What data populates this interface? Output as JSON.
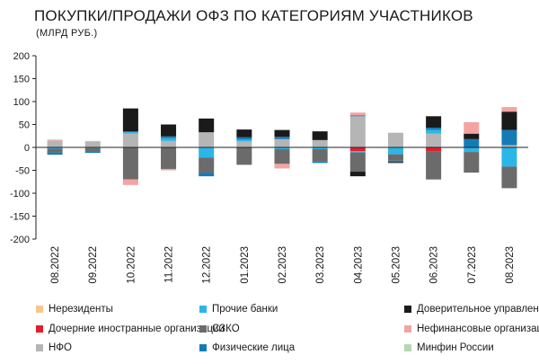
{
  "chart_data": {
    "type": "bar",
    "stacked": true,
    "title": "ПОКУПКИ/ПРОДАЖИ ОФЗ ПО КАТЕГОРИЯМ УЧАСТНИКОВ",
    "subtitle": "(МЛРД РУБ.)",
    "ylim": [
      -200,
      200
    ],
    "yticks": [
      -200,
      -150,
      -100,
      -50,
      0,
      50,
      100,
      150,
      200
    ],
    "grid": false,
    "legend_position": "bottom",
    "categories": [
      "08.2022",
      "09.2022",
      "10.2022",
      "11.2022",
      "12.2022",
      "01.2023",
      "02.2023",
      "03.2023",
      "04.2023",
      "05.2023",
      "06.2023",
      "07.2023",
      "08.2023"
    ],
    "series": [
      {
        "name": "Нерезиденты",
        "color": "#f7c88a",
        "values": [
          0,
          0,
          0,
          0,
          0,
          0,
          0,
          0,
          0,
          0,
          0,
          0,
          0
        ]
      },
      {
        "name": "Дочерние иностранные организации",
        "color": "#e31e2d",
        "values": [
          0,
          0,
          0,
          0,
          0,
          0,
          0,
          0,
          -8,
          0,
          -8,
          0,
          0
        ]
      },
      {
        "name": "НФО",
        "color": "#b5b5b5",
        "values": [
          15,
          12,
          30,
          14,
          33,
          13,
          18,
          16,
          68,
          32,
          30,
          0,
          5
        ]
      },
      {
        "name": "Прочие банки",
        "color": "#2bb6e8",
        "values": [
          -3,
          -2,
          3,
          6,
          -22,
          4,
          -4,
          -4,
          -3,
          -15,
          8,
          -10,
          -42
        ]
      },
      {
        "name": "СЗКО",
        "color": "#6b6b6b",
        "values": [
          -8,
          -7,
          -70,
          -47,
          -33,
          -38,
          -32,
          -27,
          -42,
          -14,
          -62,
          -45,
          -47
        ]
      },
      {
        "name": "Физические лица",
        "color": "#137cb7",
        "values": [
          -5,
          -3,
          2,
          4,
          -8,
          5,
          5,
          -3,
          2,
          -3,
          5,
          18,
          33
        ]
      },
      {
        "name": "Доверительное управление",
        "color": "#1a1a1a",
        "values": [
          0,
          0,
          50,
          26,
          30,
          17,
          15,
          19,
          -10,
          -2,
          25,
          12,
          40
        ]
      },
      {
        "name": "Нефинансовые организации",
        "color": "#f4a3a3",
        "values": [
          2,
          2,
          -12,
          -3,
          0,
          0,
          -10,
          0,
          6,
          0,
          0,
          25,
          10
        ]
      },
      {
        "name": "Минфин России",
        "color": "#b3d9b0",
        "values": [
          0,
          0,
          0,
          0,
          0,
          0,
          0,
          0,
          0,
          0,
          0,
          0,
          0
        ]
      }
    ]
  }
}
